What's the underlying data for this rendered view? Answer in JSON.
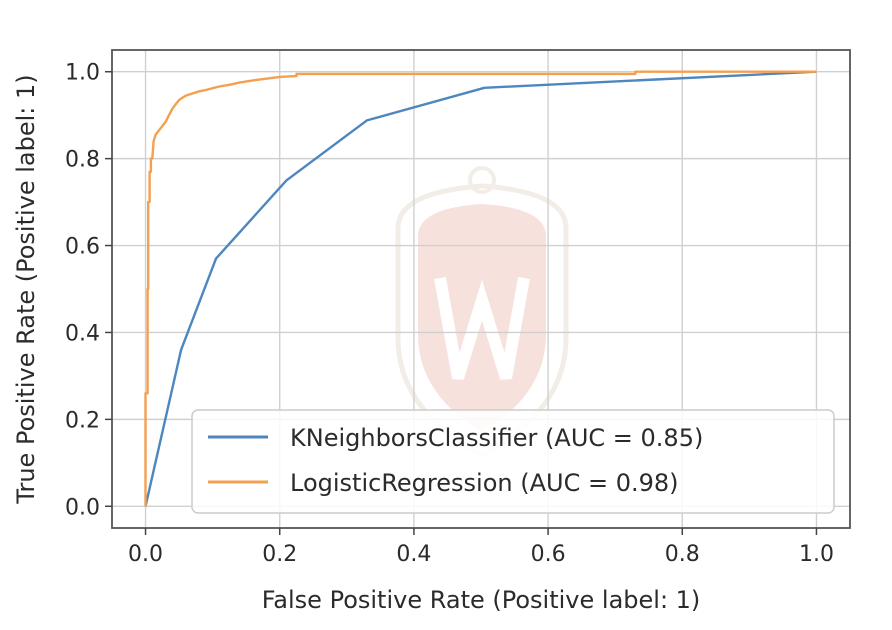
{
  "chart_data": {
    "type": "line",
    "title": "",
    "xlabel": "False Positive Rate (Positive label: 1)",
    "ylabel": "True Positive Rate (Positive label: 1)",
    "xlim": [
      -0.05,
      1.05
    ],
    "ylim": [
      -0.05,
      1.05
    ],
    "grid": true,
    "legend_position": "bottom-right",
    "x_ticks": [
      0.0,
      0.2,
      0.4,
      0.6,
      0.8,
      1.0
    ],
    "x_tick_labels": [
      "0.0",
      "0.2",
      "0.4",
      "0.6",
      "0.8",
      "1.0"
    ],
    "y_ticks": [
      0.0,
      0.2,
      0.4,
      0.6,
      0.8,
      1.0
    ],
    "y_tick_labels": [
      "0.0",
      "0.2",
      "0.4",
      "0.6",
      "0.8",
      "1.0"
    ],
    "series": [
      {
        "name": "KNeighborsClassifier (AUC = 0.85)",
        "color": "#4e86c0",
        "x": [
          0.0,
          0.053,
          0.105,
          0.21,
          0.33,
          0.505,
          1.0
        ],
        "y": [
          0.0,
          0.36,
          0.57,
          0.75,
          0.888,
          0.963,
          1.0
        ]
      },
      {
        "name": "LogisticRegression (AUC = 0.98)",
        "color": "#f3a04f",
        "x": [
          0.0,
          0.0,
          0.003,
          0.003,
          0.004,
          0.004,
          0.006,
          0.006,
          0.008,
          0.008,
          0.01,
          0.012,
          0.015,
          0.02,
          0.025,
          0.03,
          0.035,
          0.04,
          0.045,
          0.05,
          0.055,
          0.06,
          0.07,
          0.08,
          0.09,
          0.1,
          0.11,
          0.125,
          0.14,
          0.16,
          0.18,
          0.2,
          0.225,
          0.225,
          0.4,
          0.73,
          0.73,
          0.83,
          0.83,
          1.0
        ],
        "y": [
          0.0,
          0.26,
          0.26,
          0.5,
          0.5,
          0.7,
          0.7,
          0.77,
          0.77,
          0.8,
          0.8,
          0.84,
          0.855,
          0.865,
          0.875,
          0.885,
          0.9,
          0.915,
          0.925,
          0.935,
          0.94,
          0.945,
          0.95,
          0.955,
          0.958,
          0.962,
          0.966,
          0.97,
          0.975,
          0.98,
          0.984,
          0.988,
          0.99,
          0.995,
          0.995,
          0.995,
          1.0,
          1.0,
          1.0,
          1.0
        ]
      }
    ]
  }
}
